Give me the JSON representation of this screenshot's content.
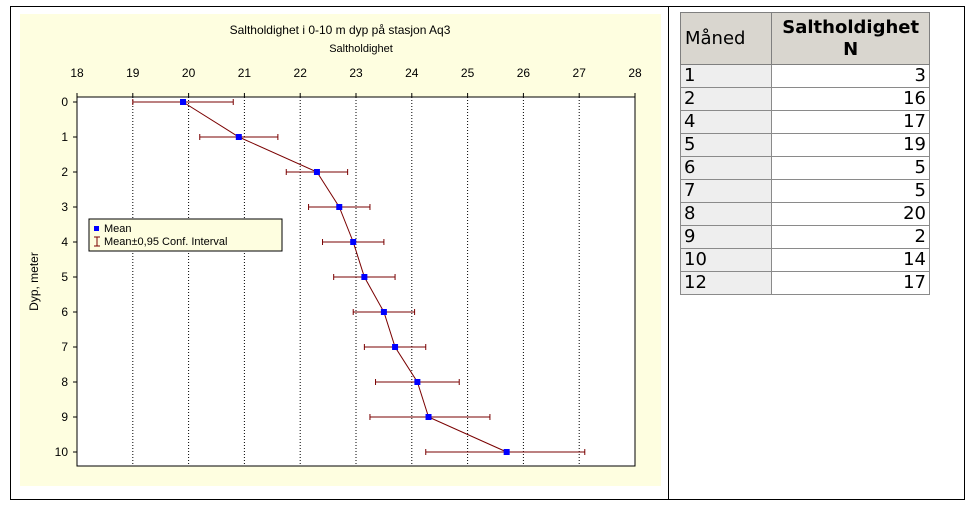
{
  "chart_data": {
    "type": "scatter",
    "title": "Saltholdighet i 0-10 m dyp på stasjon Aq3",
    "xlabel": "Saltholdighet",
    "ylabel": "Dyp, meter",
    "xlim": [
      18,
      28
    ],
    "ylim": [
      0,
      10
    ],
    "x_ticks": [
      "18",
      "19",
      "20",
      "21",
      "22",
      "23",
      "24",
      "25",
      "26",
      "27",
      "28"
    ],
    "y_ticks": [
      "0",
      "1",
      "2",
      "3",
      "4",
      "5",
      "6",
      "7",
      "8",
      "9",
      "10"
    ],
    "grid": "vertical dotted",
    "legend_position": "left",
    "legend": [
      "Mean",
      "Mean±0,95 Conf. Interval"
    ],
    "series": [
      {
        "name": "Mean",
        "color": "#0000ff",
        "line_color": "#7a0000",
        "points": [
          {
            "depth": 0,
            "mean": 19.9,
            "ci_low": 19.0,
            "ci_high": 20.8
          },
          {
            "depth": 1,
            "mean": 20.9,
            "ci_low": 20.2,
            "ci_high": 21.6
          },
          {
            "depth": 2,
            "mean": 22.3,
            "ci_low": 21.75,
            "ci_high": 22.85
          },
          {
            "depth": 3,
            "mean": 22.7,
            "ci_low": 22.15,
            "ci_high": 23.25
          },
          {
            "depth": 4,
            "mean": 22.95,
            "ci_low": 22.4,
            "ci_high": 23.5
          },
          {
            "depth": 5,
            "mean": 23.15,
            "ci_low": 22.6,
            "ci_high": 23.7
          },
          {
            "depth": 6,
            "mean": 23.5,
            "ci_low": 22.95,
            "ci_high": 24.05
          },
          {
            "depth": 7,
            "mean": 23.7,
            "ci_low": 23.15,
            "ci_high": 24.25
          },
          {
            "depth": 8,
            "mean": 24.1,
            "ci_low": 23.35,
            "ci_high": 24.85
          },
          {
            "depth": 9,
            "mean": 24.3,
            "ci_low": 23.25,
            "ci_high": 25.4
          },
          {
            "depth": 10,
            "mean": 25.7,
            "ci_low": 24.25,
            "ci_high": 27.1
          }
        ]
      }
    ]
  },
  "colors": {
    "chart_background": "#fefee0",
    "marker": "#0000ff",
    "line": "#7a0000",
    "table_header": "#d9d6cf",
    "table_month_cell": "#eeeeee"
  },
  "table": {
    "headers": {
      "month": "Måned",
      "n_line1": "Saltholdighet",
      "n_line2": "N"
    },
    "rows": [
      {
        "month": "1",
        "n": "3"
      },
      {
        "month": "2",
        "n": "16"
      },
      {
        "month": "4",
        "n": "17"
      },
      {
        "month": "5",
        "n": "19"
      },
      {
        "month": "6",
        "n": "5"
      },
      {
        "month": "7",
        "n": "5"
      },
      {
        "month": "8",
        "n": "20"
      },
      {
        "month": "9",
        "n": "2"
      },
      {
        "month": "10",
        "n": "14"
      },
      {
        "month": "12",
        "n": "17"
      }
    ]
  }
}
